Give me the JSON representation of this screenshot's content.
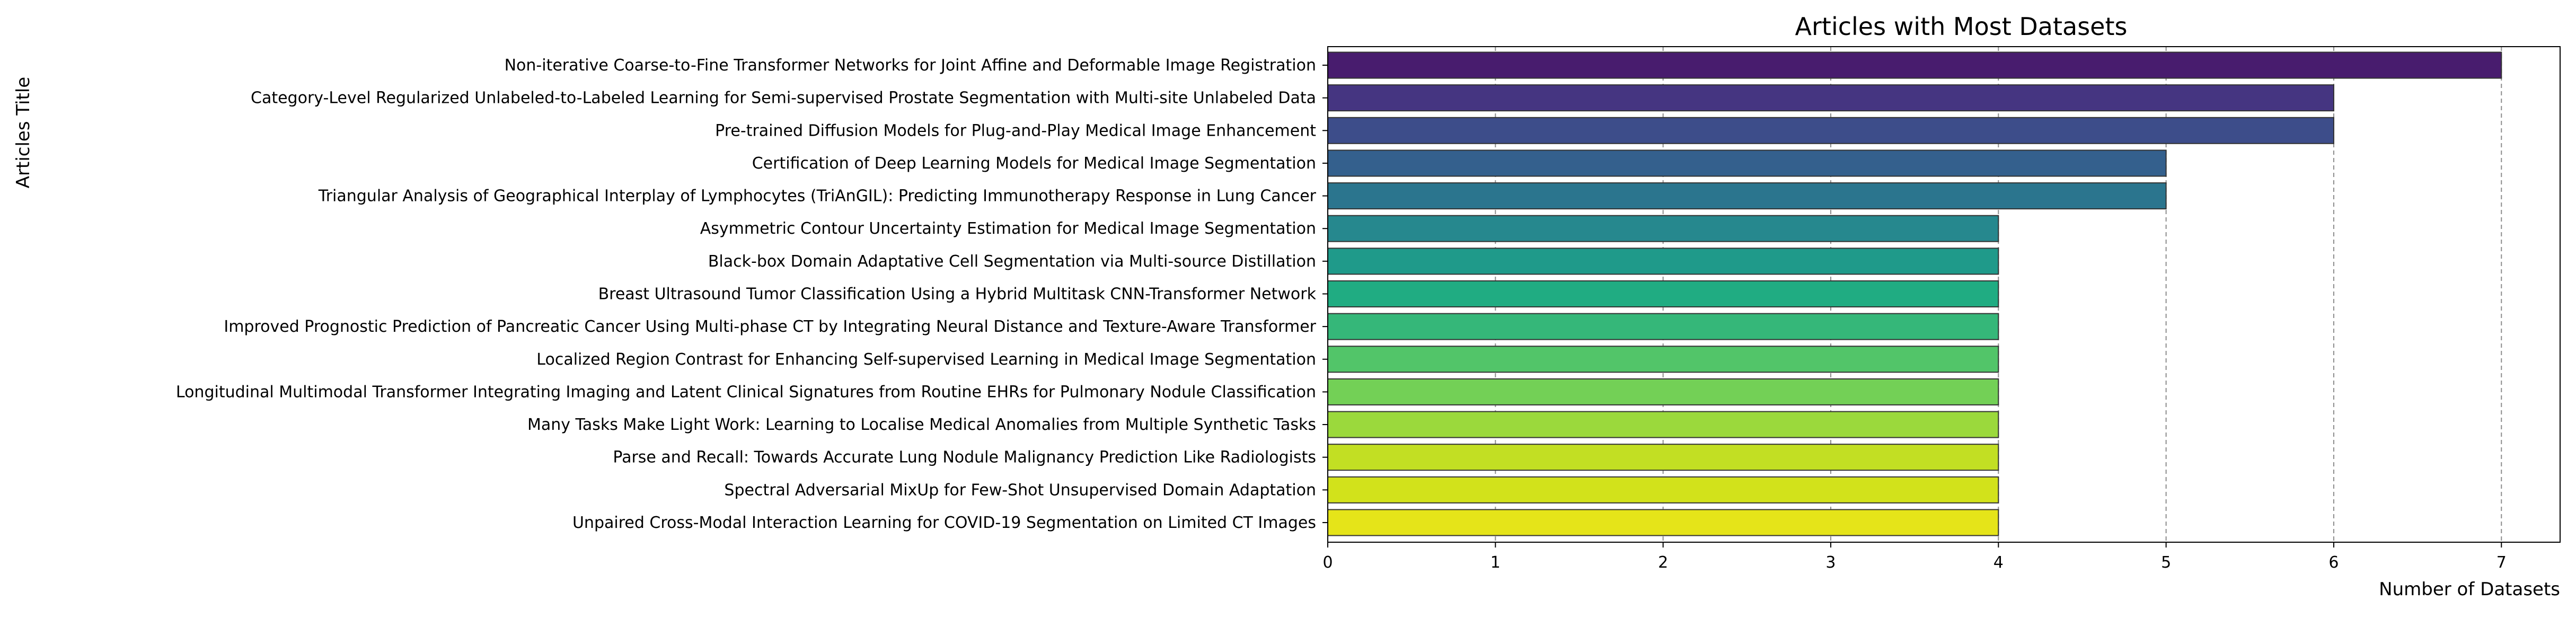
{
  "chart_data": {
    "type": "bar",
    "orientation": "horizontal",
    "title": "Articles with Most Datasets",
    "xlabel": "Number of Datasets",
    "ylabel": "Articles Title",
    "xlim": [
      0,
      7.35
    ],
    "xticks": [
      0,
      1,
      2,
      3,
      4,
      5,
      6,
      7
    ],
    "grid": "x-dashed",
    "palette": "viridis",
    "categories": [
      "Non-iterative Coarse-to-Fine Transformer Networks for Joint Affine and Deformable Image Registration",
      "Category-Level Regularized Unlabeled-to-Labeled Learning for Semi-supervised Prostate Segmentation with Multi-site Unlabeled Data",
      "Pre-trained Diffusion Models for Plug-and-Play Medical Image Enhancement",
      "Certification of Deep Learning Models for Medical Image Segmentation",
      "Triangular Analysis of Geographical Interplay of Lymphocytes (TriAnGIL): Predicting Immunotherapy Response in Lung Cancer",
      "Asymmetric Contour Uncertainty Estimation for Medical Image Segmentation",
      "Black-box Domain Adaptative Cell Segmentation via Multi-source Distillation",
      "Breast Ultrasound Tumor Classification Using a Hybrid Multitask CNN-Transformer Network",
      "Improved Prognostic Prediction of Pancreatic Cancer Using Multi-phase CT by Integrating Neural Distance and Texture-Aware Transformer",
      "Localized Region Contrast for Enhancing Self-supervised Learning in Medical Image Segmentation",
      "Longitudinal Multimodal Transformer Integrating Imaging and Latent Clinical Signatures from Routine EHRs for Pulmonary Nodule Classification",
      "Many Tasks Make Light Work: Learning to Localise Medical Anomalies from Multiple Synthetic Tasks",
      "Parse and Recall: Towards Accurate Lung Nodule Malignancy Prediction Like Radiologists",
      "Spectral Adversarial MixUp for Few-Shot Unsupervised Domain Adaptation",
      "Unpaired Cross-Modal Interaction Learning for COVID-19 Segmentation on Limited CT Images"
    ],
    "values": [
      7,
      6,
      6,
      5,
      5,
      4,
      4,
      4,
      4,
      4,
      4,
      4,
      4,
      4,
      4
    ],
    "colors": [
      "#481c6e",
      "#453581",
      "#3d4d8a",
      "#34608d",
      "#2b758e",
      "#26888e",
      "#1f9a8a",
      "#20ac82",
      "#35b779",
      "#52c569",
      "#73d056",
      "#9bd93c",
      "#c2df23",
      "#d2e21b",
      "#e5e419"
    ]
  }
}
